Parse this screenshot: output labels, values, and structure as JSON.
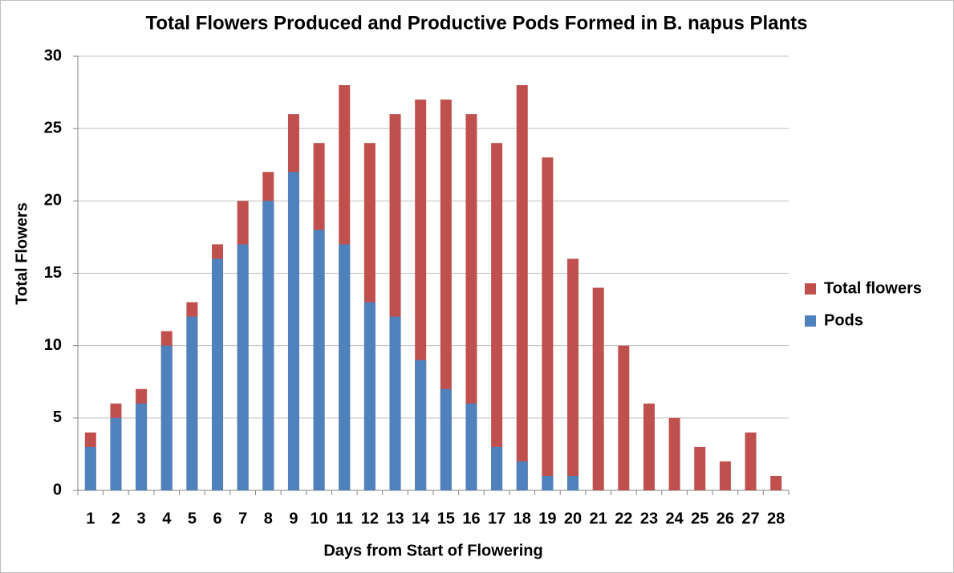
{
  "chart_data": {
    "type": "bar",
    "title": "Total Flowers Produced and Productive Pods Formed in B. napus Plants",
    "xlabel": "Days from Start of Flowering",
    "ylabel": "Total Flowers",
    "categories": [
      "1",
      "2",
      "3",
      "4",
      "5",
      "6",
      "7",
      "8",
      "9",
      "10",
      "11",
      "12",
      "13",
      "14",
      "15",
      "16",
      "17",
      "18",
      "19",
      "20",
      "21",
      "22",
      "23",
      "24",
      "25",
      "26",
      "27",
      "28"
    ],
    "series": [
      {
        "name": "Total flowers",
        "color": "#c0504d",
        "values": [
          4,
          6,
          7,
          11,
          13,
          17,
          20,
          22,
          26,
          24,
          28,
          24,
          26,
          27,
          27,
          26,
          24,
          28,
          23,
          16,
          14,
          10,
          6,
          5,
          3,
          2,
          4,
          1
        ]
      },
      {
        "name": "Pods",
        "color": "#4f81bd",
        "values": [
          3,
          5,
          6,
          10,
          12,
          16,
          17,
          20,
          22,
          18,
          17,
          13,
          12,
          9,
          7,
          6,
          3,
          2,
          1,
          1,
          0,
          0,
          0,
          0,
          0,
          0,
          0,
          0
        ]
      }
    ],
    "overlap": true,
    "ylim": [
      0,
      30
    ],
    "yticks": [
      0,
      5,
      10,
      15,
      20,
      25,
      30
    ],
    "grid": true,
    "legend": "right"
  }
}
